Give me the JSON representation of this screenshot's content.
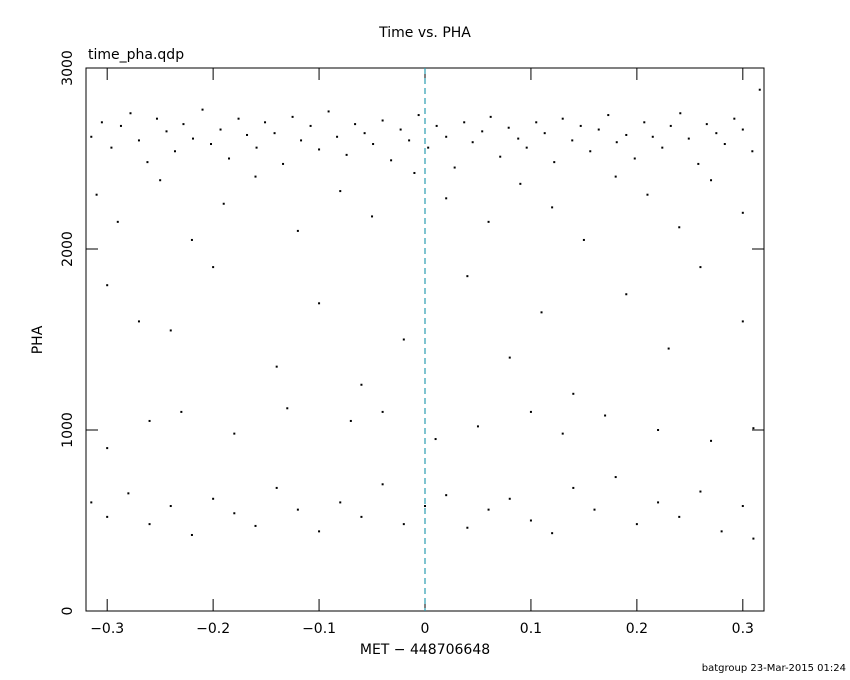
{
  "chart_data": {
    "type": "scatter",
    "title": "Time vs. PHA",
    "subtitle": "time_pha.qdp",
    "x_label": "MET − 448706648",
    "y_label": "PHA",
    "footer": "batgroup 23-Mar-2015 01:24",
    "color": "#000000",
    "vline": {
      "value": 0,
      "color": "#2a9db0"
    },
    "xlim": [
      -0.32,
      0.32
    ],
    "ylim": [
      0,
      3000
    ],
    "xticks": [
      {
        "value": -0.3,
        "label": "−0.3"
      },
      {
        "value": -0.2,
        "label": "−0.2"
      },
      {
        "value": -0.1,
        "label": "−0.1"
      },
      0,
      0.1,
      0.2,
      0.3
    ],
    "yticks": [
      0,
      1000,
      2000,
      3000
    ],
    "x": [
      -0.315,
      -0.305,
      -0.296,
      -0.287,
      -0.278,
      -0.27,
      -0.262,
      -0.253,
      -0.244,
      -0.236,
      -0.228,
      -0.219,
      -0.21,
      -0.202,
      -0.193,
      -0.185,
      -0.176,
      -0.168,
      -0.159,
      -0.151,
      -0.142,
      -0.134,
      -0.125,
      -0.117,
      -0.108,
      -0.1,
      -0.091,
      -0.083,
      -0.074,
      -0.066,
      -0.057,
      -0.049,
      -0.04,
      -0.032,
      -0.023,
      -0.015,
      -0.006,
      0.003,
      0.011,
      0.02,
      0.028,
      0.037,
      0.045,
      0.054,
      0.062,
      0.071,
      0.079,
      0.088,
      0.096,
      0.105,
      0.113,
      0.122,
      0.13,
      0.139,
      0.147,
      0.156,
      0.164,
      0.173,
      0.181,
      0.19,
      0.198,
      0.207,
      0.215,
      0.224,
      0.232,
      0.241,
      0.249,
      0.258,
      0.266,
      0.275,
      0.283,
      0.292,
      0.3,
      0.309,
      0.316,
      -0.31,
      -0.29,
      -0.25,
      -0.22,
      -0.19,
      -0.16,
      -0.12,
      -0.08,
      -0.05,
      -0.01,
      0.02,
      0.06,
      0.09,
      0.12,
      0.15,
      0.18,
      0.21,
      0.24,
      0.27,
      0.3,
      -0.3,
      -0.27,
      -0.24,
      -0.2,
      -0.14,
      -0.1,
      -0.06,
      -0.02,
      0.04,
      0.08,
      0.11,
      0.14,
      0.19,
      0.23,
      0.26,
      0.3,
      -0.3,
      -0.26,
      -0.23,
      -0.18,
      -0.13,
      -0.07,
      -0.04,
      0.01,
      0.05,
      0.1,
      0.13,
      0.17,
      0.22,
      0.27,
      0.31,
      -0.315,
      -0.3,
      -0.28,
      -0.26,
      -0.24,
      -0.22,
      -0.2,
      -0.18,
      -0.16,
      -0.14,
      -0.12,
      -0.1,
      -0.08,
      -0.06,
      -0.04,
      -0.02,
      0,
      0.02,
      0.04,
      0.06,
      0.08,
      0.1,
      0.12,
      0.14,
      0.16,
      0.18,
      0.2,
      0.22,
      0.24,
      0.26,
      0.28,
      0.3,
      0.31
    ],
    "values": [
      2620,
      2700,
      2560,
      2680,
      2750,
      2600,
      2480,
      2720,
      2650,
      2540,
      2690,
      2610,
      2770,
      2580,
      2660,
      2500,
      2720,
      2630,
      2560,
      2700,
      2640,
      2470,
      2730,
      2600,
      2680,
      2550,
      2760,
      2620,
      2520,
      2690,
      2640,
      2580,
      2710,
      2490,
      2660,
      2600,
      2740,
      2560,
      2680,
      2620,
      2450,
      2700,
      2590,
      2650,
      2730,
      2510,
      2670,
      2610,
      2560,
      2700,
      2640,
      2480,
      2720,
      2600,
      2680,
      2540,
      2660,
      2740,
      2590,
      2630,
      2500,
      2700,
      2620,
      2560,
      2680,
      2750,
      2610,
      2470,
      2690,
      2640,
      2580,
      2720,
      2660,
      2540,
      2880,
      2300,
      2150,
      2380,
      2050,
      2250,
      2400,
      2100,
      2320,
      2180,
      2420,
      2280,
      2150,
      2360,
      2230,
      2050,
      2400,
      2300,
      2120,
      2380,
      2200,
      1800,
      1600,
      1550,
      1900,
      1350,
      1700,
      1250,
      1500,
      1850,
      1400,
      1650,
      1200,
      1750,
      1450,
      1900,
      1600,
      900,
      1050,
      1100,
      980,
      1120,
      1050,
      1100,
      950,
      1020,
      1100,
      980,
      1080,
      1000,
      940,
      1010,
      600,
      520,
      650,
      480,
      580,
      420,
      620,
      540,
      470,
      680,
      560,
      440,
      600,
      520,
      700,
      480,
      580,
      640,
      460,
      560,
      620,
      500,
      430,
      680,
      560,
      740,
      480,
      600,
      520,
      660,
      440,
      580,
      400
    ]
  }
}
